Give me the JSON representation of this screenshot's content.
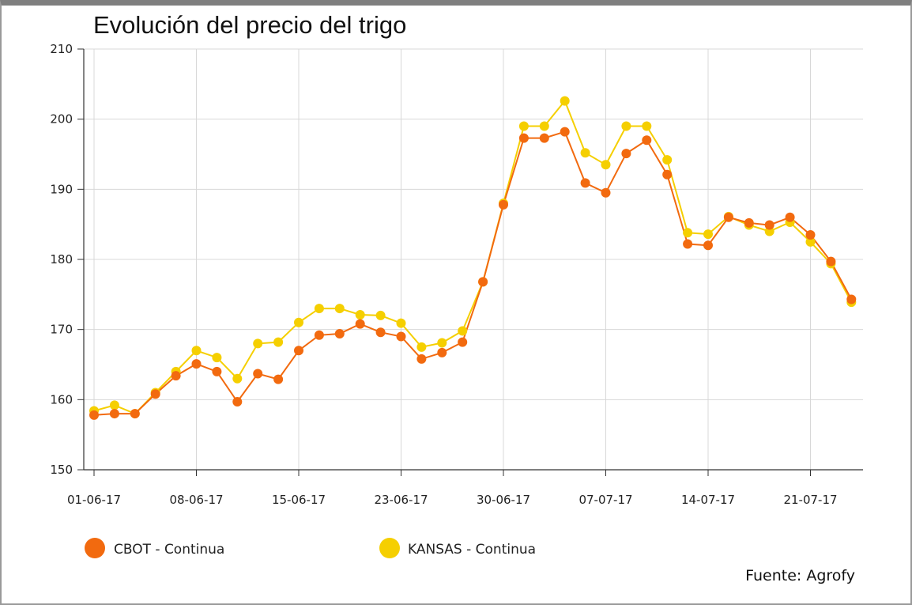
{
  "chart_data": {
    "type": "line",
    "title": "Evolución del precio del trigo",
    "source": "Fuente: Agrofy",
    "xlabel": "",
    "ylabel": "",
    "ylim": [
      150,
      210
    ],
    "yticks": [
      150,
      160,
      170,
      180,
      190,
      200,
      210
    ],
    "x_tick_labels": [
      "01-06-17",
      "08-06-17",
      "15-06-17",
      "23-06-17",
      "30-06-17",
      "07-07-17",
      "14-07-17",
      "21-07-17"
    ],
    "x_tick_index": [
      0,
      5,
      10,
      15,
      20,
      25,
      30,
      35
    ],
    "grid": true,
    "legend_position": "bottom-left",
    "series": [
      {
        "name": "CBOT",
        "legend_label": "CBOT - Continua",
        "color": "#f26a0f",
        "values": [
          157.8,
          158.0,
          158.0,
          160.8,
          163.4,
          165.1,
          164.0,
          159.7,
          163.7,
          162.9,
          167.0,
          169.2,
          169.4,
          170.8,
          169.6,
          169.0,
          165.8,
          166.7,
          168.2,
          176.8,
          187.8,
          197.3,
          197.3,
          198.2,
          190.9,
          189.5,
          195.1,
          197.0,
          192.1,
          182.2,
          182.0,
          186.0,
          185.2,
          184.9,
          186.0,
          183.5,
          179.7,
          174.3
        ]
      },
      {
        "name": "KANSAS",
        "legend_label": "KANSAS - Continua",
        "color": "#f5cf00",
        "values": [
          158.4,
          159.2,
          158.0,
          161.0,
          164.0,
          167.0,
          166.0,
          163.0,
          168.0,
          168.2,
          171.0,
          173.0,
          173.0,
          172.1,
          172.0,
          170.9,
          167.5,
          168.1,
          169.8,
          176.8,
          188.0,
          199.0,
          199.0,
          202.6,
          195.2,
          193.5,
          199.0,
          199.0,
          194.2,
          183.8,
          183.6,
          186.1,
          184.9,
          184.0,
          185.3,
          182.5,
          179.4,
          173.9
        ]
      }
    ]
  }
}
